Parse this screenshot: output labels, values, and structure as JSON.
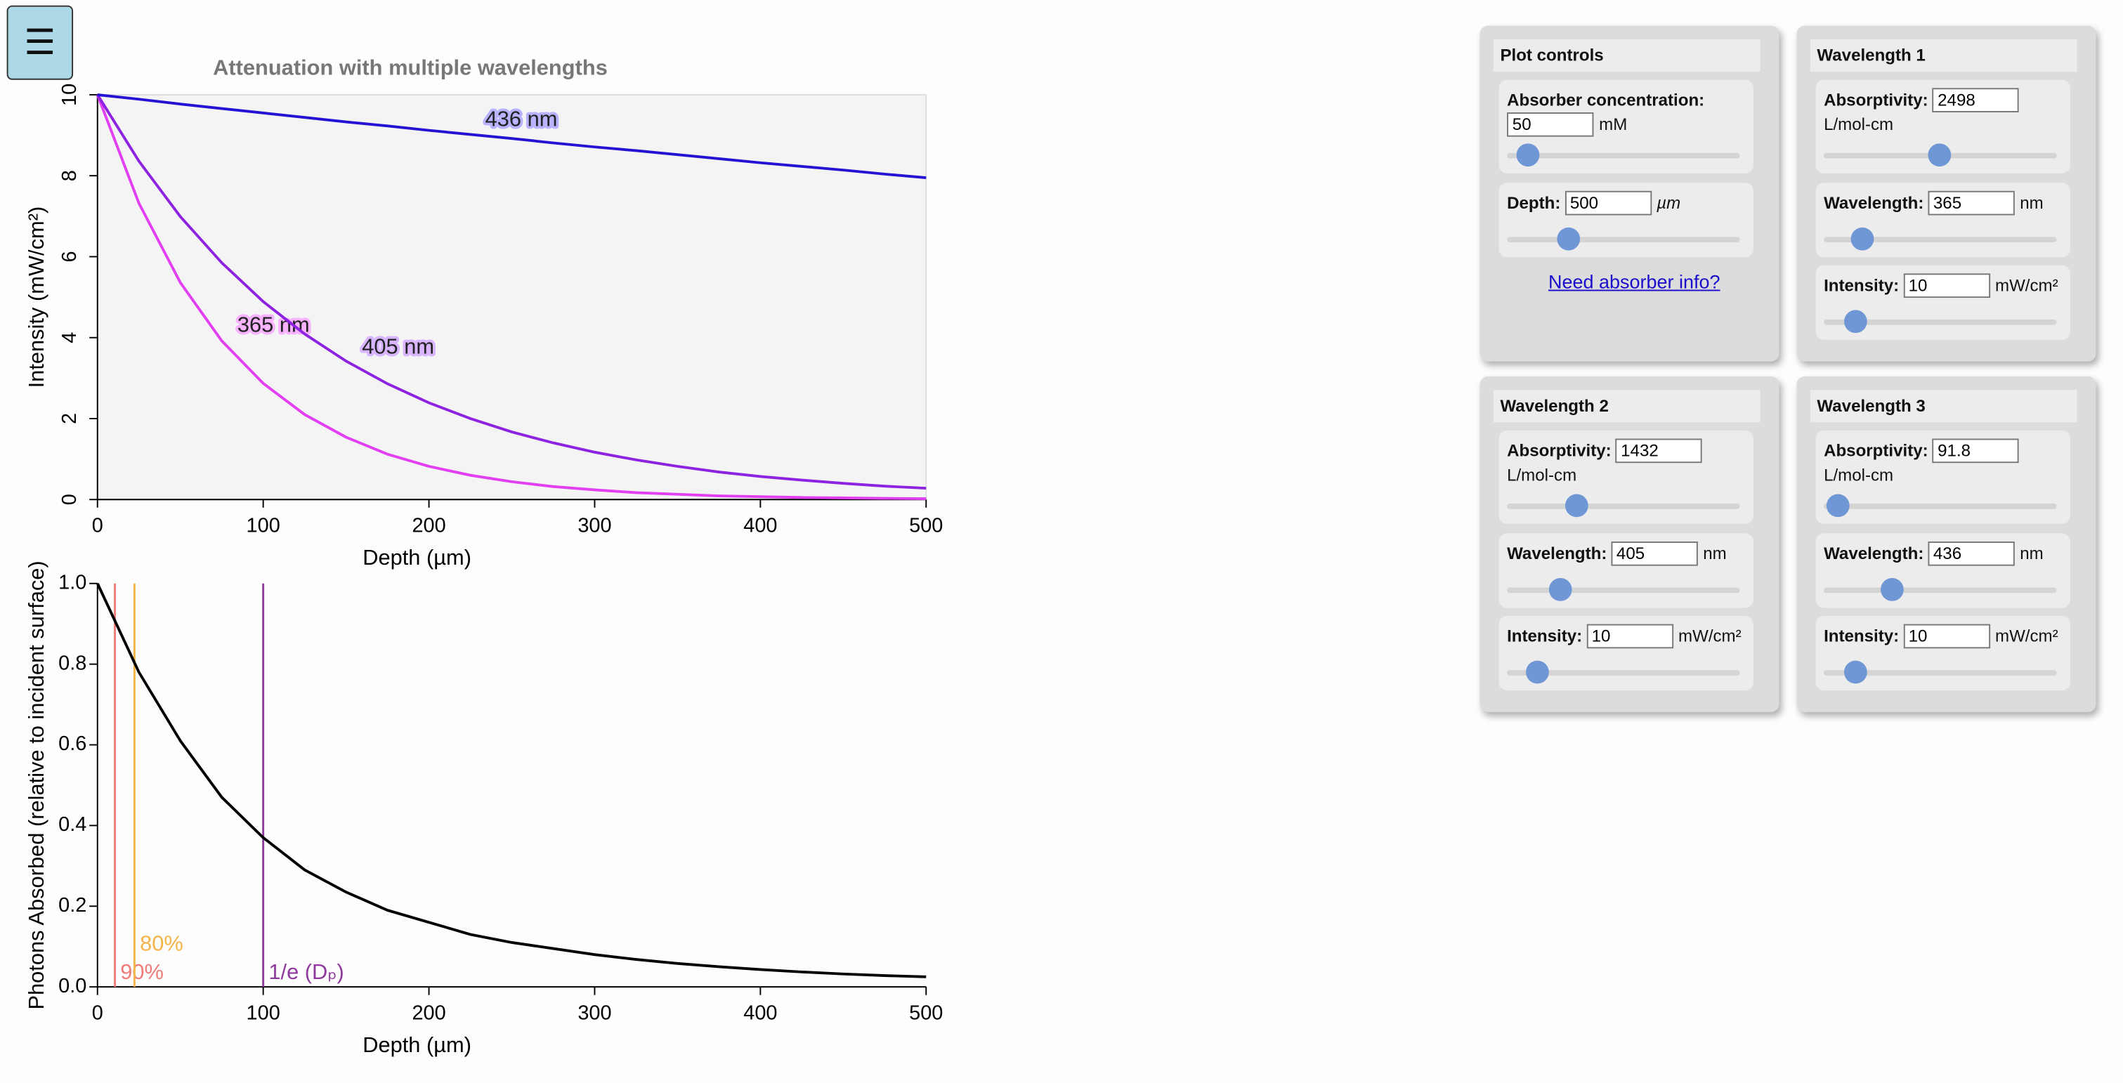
{
  "menu_button": "☰",
  "chart_data": [
    {
      "type": "line",
      "title": "Attenuation with multiple wavelengths",
      "x_label": "Depth (µm)",
      "y_label": "Intensity (mW/cm²)",
      "x": [
        0,
        25,
        50,
        75,
        100,
        125,
        150,
        175,
        200,
        225,
        250,
        275,
        300,
        325,
        350,
        375,
        400,
        425,
        450,
        475,
        500
      ],
      "series": [
        {
          "name": "365 nm",
          "color": "#e23ef2",
          "values": [
            10,
            7.32,
            5.36,
            3.92,
            2.87,
            2.1,
            1.54,
            1.12,
            0.82,
            0.6,
            0.44,
            0.32,
            0.24,
            0.17,
            0.13,
            0.09,
            0.07,
            0.05,
            0.04,
            0.03,
            0.02
          ]
        },
        {
          "name": "405 nm",
          "color": "#8d22e0",
          "values": [
            10,
            8.36,
            6.99,
            5.85,
            4.89,
            4.09,
            3.42,
            2.86,
            2.39,
            2.0,
            1.67,
            1.4,
            1.17,
            0.98,
            0.82,
            0.68,
            0.57,
            0.48,
            0.4,
            0.33,
            0.28
          ]
        },
        {
          "name": "436 nm",
          "color": "#2412d4",
          "values": [
            10,
            9.89,
            9.77,
            9.66,
            9.55,
            9.44,
            9.33,
            9.23,
            9.12,
            9.02,
            8.92,
            8.81,
            8.71,
            8.62,
            8.52,
            8.42,
            8.32,
            8.23,
            8.14,
            8.04,
            7.95
          ]
        }
      ],
      "xlim": [
        0,
        500
      ],
      "xticks": [
        0,
        100,
        200,
        300,
        400,
        500
      ],
      "ylim": [
        0,
        10
      ],
      "yticks": [
        0,
        2,
        4,
        6,
        8,
        10
      ]
    },
    {
      "type": "line",
      "x_label": "Depth (µm)",
      "y_label": "Photons Absorbed (relative to incident surface)",
      "x": [
        0,
        25,
        50,
        75,
        100,
        125,
        150,
        175,
        200,
        225,
        250,
        275,
        300,
        325,
        350,
        375,
        400,
        425,
        450,
        475,
        500
      ],
      "series": [
        {
          "color": "#000000",
          "values": [
            1,
            0.78,
            0.61,
            0.47,
            0.37,
            0.29,
            0.235,
            0.19,
            0.16,
            0.13,
            0.11,
            0.095,
            0.08,
            0.068,
            0.058,
            0.05,
            0.043,
            0.037,
            0.032,
            0.028,
            0.025
          ]
        }
      ],
      "annotations": [
        {
          "x": 10.5,
          "label": "90%",
          "color": "#ee7c78"
        },
        {
          "x": 22.3,
          "label": "80%",
          "color": "#f4b448"
        },
        {
          "x": 100,
          "label": "1/e (Dₚ)",
          "color": "#8e3a9c"
        }
      ],
      "xlim": [
        0,
        500
      ],
      "xticks": [
        0,
        100,
        200,
        300,
        400,
        500
      ],
      "ylim": [
        0,
        1
      ],
      "yticks": [
        {
          "value": 0,
          "label": "0.0"
        },
        {
          "value": 0.2,
          "label": "0.2"
        },
        {
          "value": 0.4,
          "label": "0.4"
        },
        {
          "value": 0.6,
          "label": "0.6"
        },
        {
          "value": 0.8,
          "label": "0.8"
        },
        {
          "value": 1,
          "label": "1.0"
        }
      ]
    }
  ],
  "panels": [
    {
      "title": "Plot controls",
      "fields": [
        {
          "label": "Absorber concentration:",
          "value": "50",
          "unit": "mM"
        },
        {
          "label": "Depth:",
          "value": "500",
          "unit": "µm"
        }
      ],
      "link": "Need absorber info?"
    },
    {
      "title": "Wavelength 1",
      "fields": [
        {
          "label": "Absorptivity:",
          "value": "2498",
          "unit": "L/mol-cm"
        },
        {
          "label": "Wavelength:",
          "value": "365",
          "unit": "nm"
        },
        {
          "label": "Intensity:",
          "value": "10",
          "unit": "mW/cm²"
        }
      ]
    },
    {
      "title": "Wavelength 2",
      "fields": [
        {
          "label": "Absorptivity:",
          "value": "1432",
          "unit": "L/mol-cm"
        },
        {
          "label": "Wavelength:",
          "value": "405",
          "unit": "nm"
        },
        {
          "label": "Intensity:",
          "value": "10",
          "unit": "mW/cm²"
        }
      ]
    },
    {
      "title": "Wavelength 3",
      "fields": [
        {
          "label": "Absorptivity:",
          "value": "91.8",
          "unit": "L/mol-cm"
        },
        {
          "label": "Wavelength:",
          "value": "436",
          "unit": "nm"
        },
        {
          "label": "Intensity:",
          "value": "10",
          "unit": "mW/cm²"
        }
      ]
    }
  ]
}
